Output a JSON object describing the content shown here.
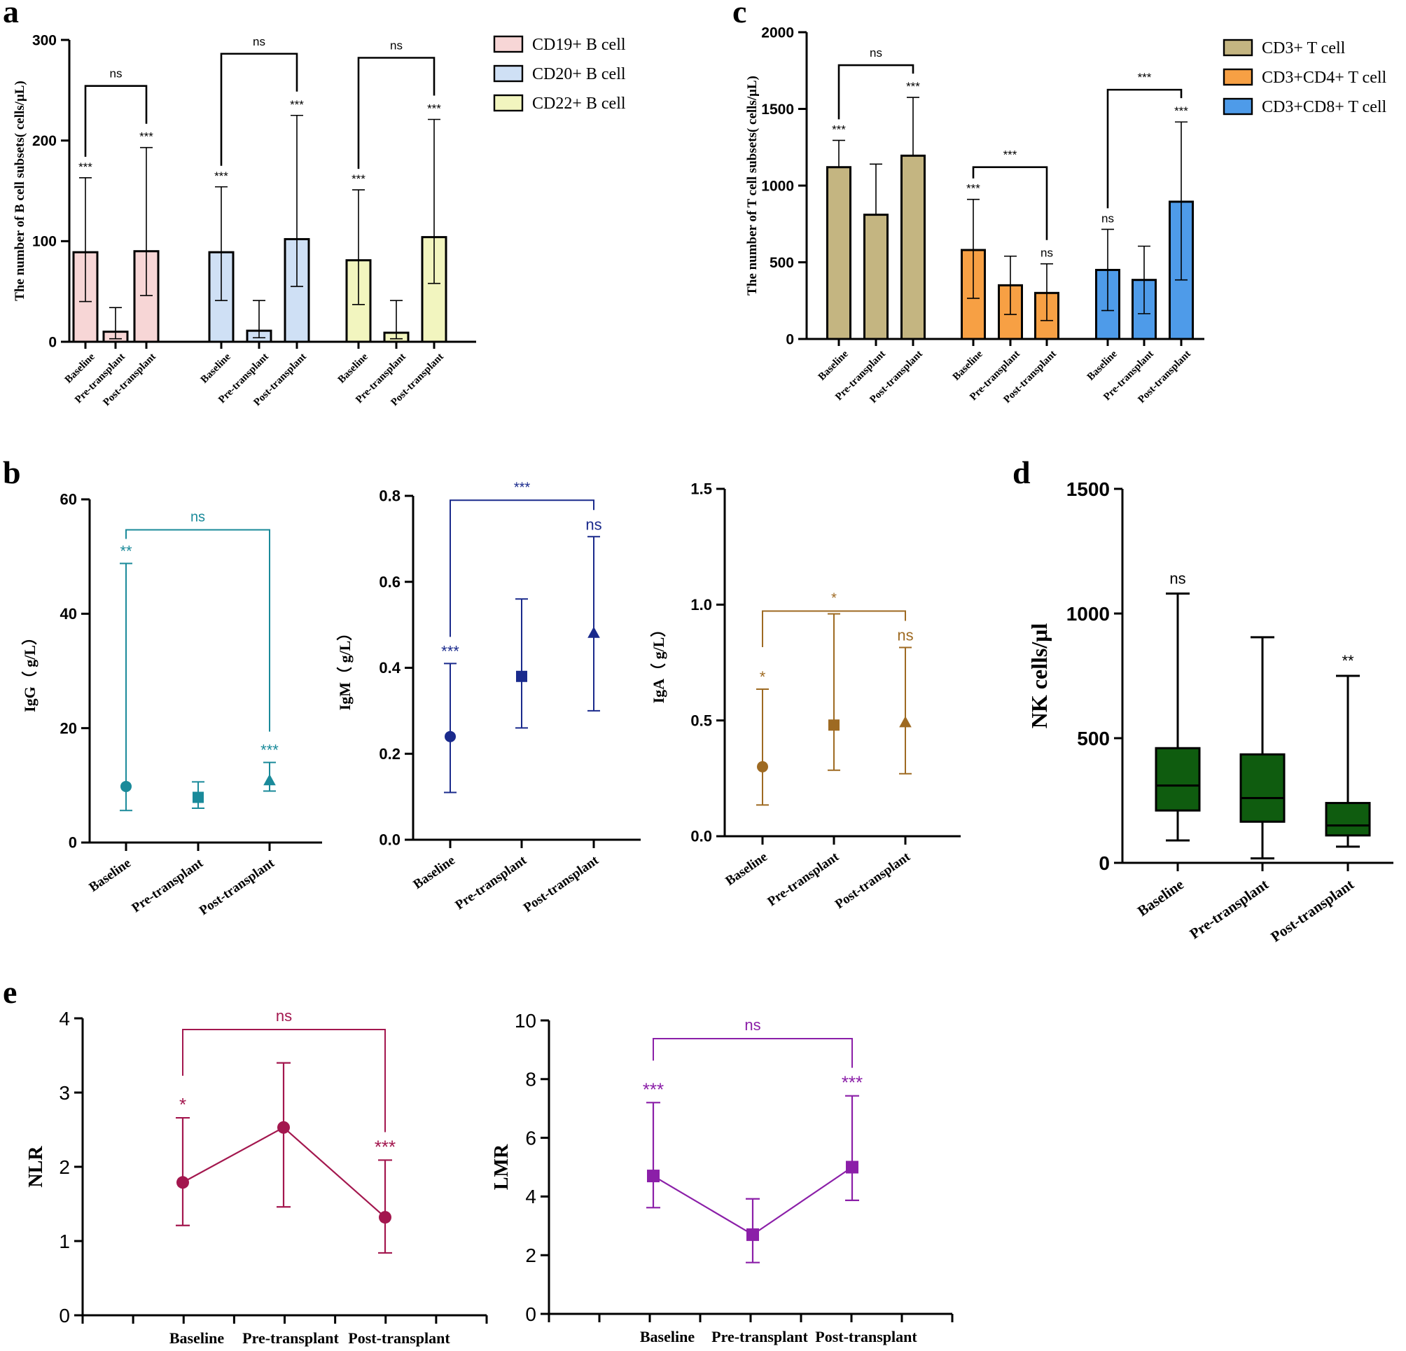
{
  "panel_letters": {
    "a": "a",
    "b": "b",
    "c": "c",
    "d": "d",
    "e": "e"
  },
  "chart_data": [
    {
      "id": "a",
      "type": "bar",
      "ylabel": "The number of B cell subsets( cells/μL)",
      "ylim": [
        0,
        300
      ],
      "yticks": [
        0,
        100,
        200,
        300
      ],
      "series": [
        {
          "name": "CD19+ B cell",
          "color": "#f7d6d6",
          "categories": [
            "Baseline",
            "Pre-transplant",
            "Post-transplant"
          ],
          "values": [
            89,
            10,
            90
          ],
          "err_lo": [
            40,
            3,
            46
          ],
          "err_hi": [
            163,
            34,
            193
          ],
          "marks": [
            "***",
            "",
            "***"
          ],
          "bracket_label": "ns"
        },
        {
          "name": "CD20+ B cell",
          "color": "#cfe0f5",
          "categories": [
            "Baseline",
            "Pre-transplant",
            "Post-transplant"
          ],
          "values": [
            89,
            11,
            102
          ],
          "err_lo": [
            41,
            4,
            55
          ],
          "err_hi": [
            154,
            41,
            225
          ],
          "marks": [
            "***",
            "",
            "***"
          ],
          "bracket_label": "ns"
        },
        {
          "name": "CD22+ B cell",
          "color": "#f2f5bf",
          "categories": [
            "Baseline",
            "Pre-transplant",
            "Post-transplant"
          ],
          "values": [
            81,
            9,
            104
          ],
          "err_lo": [
            37,
            3,
            58
          ],
          "err_hi": [
            151,
            41,
            221
          ],
          "marks": [
            "***",
            "",
            "***"
          ],
          "bracket_label": "ns"
        }
      ]
    },
    {
      "id": "c",
      "type": "bar",
      "ylabel": "The number of T cell subsets( cells/μL)",
      "ylim": [
        0,
        2000
      ],
      "yticks": [
        0,
        500,
        1000,
        1500,
        2000
      ],
      "series": [
        {
          "name": "CD3+ T cell",
          "color": "#c4b581",
          "categories": [
            "Baseline",
            "Pre-transplant",
            "Post-transplant"
          ],
          "values": [
            1120,
            810,
            1195
          ],
          "err_lo": [
            1120,
            810,
            1195
          ],
          "err_hi": [
            1295,
            1140,
            1575
          ],
          "marks": [
            "***",
            "",
            "***"
          ],
          "bracket_label": "ns"
        },
        {
          "name": "CD3+CD4+ T  cell",
          "color": "#f7a044",
          "categories": [
            "Baseline",
            "Pre-transplant",
            "Post-transplant"
          ],
          "values": [
            580,
            350,
            300
          ],
          "err_lo": [
            265,
            160,
            120
          ],
          "err_hi": [
            910,
            540,
            490
          ],
          "marks": [
            "***",
            "",
            "ns"
          ],
          "bracket_label": "***"
        },
        {
          "name": "CD3+CD8+ T cell",
          "color": "#4e9be9",
          "categories": [
            "Baseline",
            "Pre-transplant",
            "Post-transplant"
          ],
          "values": [
            450,
            385,
            895
          ],
          "err_lo": [
            185,
            165,
            385
          ],
          "err_hi": [
            715,
            605,
            1415
          ],
          "marks": [
            "ns",
            "",
            "***"
          ],
          "bracket_label": "***"
        }
      ]
    },
    {
      "id": "b1",
      "type": "scatter",
      "ylabel": "IgG（ g/L）",
      "color": "#1a8a9a",
      "categories": [
        "Baseline",
        "Pre-transplant",
        "Post-transplant"
      ],
      "markers": [
        "circle",
        "square",
        "triangle"
      ],
      "values": [
        9.8,
        7.9,
        10.8
      ],
      "err_lo": [
        5.6,
        6.0,
        9.0
      ],
      "err_hi": [
        48.8,
        10.6,
        14.0
      ],
      "marks": [
        "**",
        "",
        "***"
      ],
      "bracket_label": "ns",
      "ylim": [
        0,
        60
      ],
      "yticks": [
        0,
        20,
        40,
        60
      ],
      "ytick_labels": [
        "0",
        "20",
        "40",
        "60"
      ]
    },
    {
      "id": "b2",
      "type": "scatter",
      "ylabel": "IgM（ g/L）",
      "color": "#1a2a8c",
      "categories": [
        "Baseline",
        "Pre-transplant",
        "Post-transplant"
      ],
      "markers": [
        "circle",
        "square",
        "triangle"
      ],
      "values": [
        0.24,
        0.38,
        0.48
      ],
      "err_lo": [
        0.11,
        0.26,
        0.3
      ],
      "err_hi": [
        0.41,
        0.56,
        0.705
      ],
      "marks": [
        "***",
        "",
        "ns"
      ],
      "bracket_label": "***",
      "ylim": [
        0,
        0.8
      ],
      "yticks": [
        0,
        0.2,
        0.4,
        0.6,
        0.8
      ],
      "ytick_labels": [
        "0.0",
        "0.2",
        "0.4",
        "0.6",
        "0.8"
      ]
    },
    {
      "id": "b3",
      "type": "scatter",
      "ylabel": "IgA（ g/L）",
      "color": "#9e6a22",
      "categories": [
        "Baseline",
        "Pre-transplant",
        "Post-transplant"
      ],
      "markers": [
        "circle",
        "square",
        "triangle"
      ],
      "values": [
        0.3,
        0.48,
        0.49
      ],
      "err_lo": [
        0.135,
        0.285,
        0.27
      ],
      "err_hi": [
        0.635,
        0.96,
        0.815
      ],
      "marks": [
        "*",
        "",
        "ns"
      ],
      "bracket_label": "*",
      "ylim": [
        0,
        1.5
      ],
      "yticks": [
        0,
        0.5,
        1.0,
        1.5
      ],
      "ytick_labels": [
        "0.0",
        "0.5",
        "1.0",
        "1.5"
      ]
    },
    {
      "id": "d",
      "type": "box",
      "ylabel": "NK cells/μl",
      "color": "#0f5c0f",
      "categories": [
        "Baseline",
        "Pre-transplant",
        "Post-transplant"
      ],
      "min": [
        90,
        18,
        65
      ],
      "q1": [
        210,
        165,
        110
      ],
      "median": [
        310,
        260,
        150
      ],
      "q3": [
        460,
        435,
        240
      ],
      "max": [
        1080,
        905,
        750
      ],
      "marks": [
        "ns",
        "",
        "**"
      ],
      "ylim": [
        0,
        1500
      ],
      "yticks": [
        0,
        500,
        1000,
        1500
      ]
    },
    {
      "id": "e1",
      "type": "line",
      "ylabel": "NLR",
      "color": "#a3174e",
      "marker": "circle",
      "categories": [
        "Baseline",
        "Pre-transplant",
        "Post-transplant"
      ],
      "values": [
        1.79,
        2.53,
        1.32
      ],
      "err_lo": [
        1.21,
        1.46,
        0.84
      ],
      "err_hi": [
        2.66,
        3.4,
        2.09
      ],
      "marks": [
        "*",
        "",
        "***"
      ],
      "bracket_label": "ns",
      "ylim": [
        0,
        4
      ],
      "yticks": [
        0,
        1,
        2,
        3,
        4
      ]
    },
    {
      "id": "e2",
      "type": "line",
      "ylabel": "LMR",
      "color": "#8b1fa8",
      "marker": "square",
      "categories": [
        "Baseline",
        "Pre-transplant",
        "Post-transplant"
      ],
      "values": [
        4.7,
        2.7,
        5.0
      ],
      "err_lo": [
        3.62,
        1.75,
        3.87
      ],
      "err_hi": [
        7.2,
        3.92,
        7.43
      ],
      "marks": [
        "***",
        "",
        "***"
      ],
      "bracket_label": "ns",
      "ylim": [
        0,
        10
      ],
      "yticks": [
        0,
        2,
        4,
        6,
        8,
        10
      ]
    }
  ]
}
